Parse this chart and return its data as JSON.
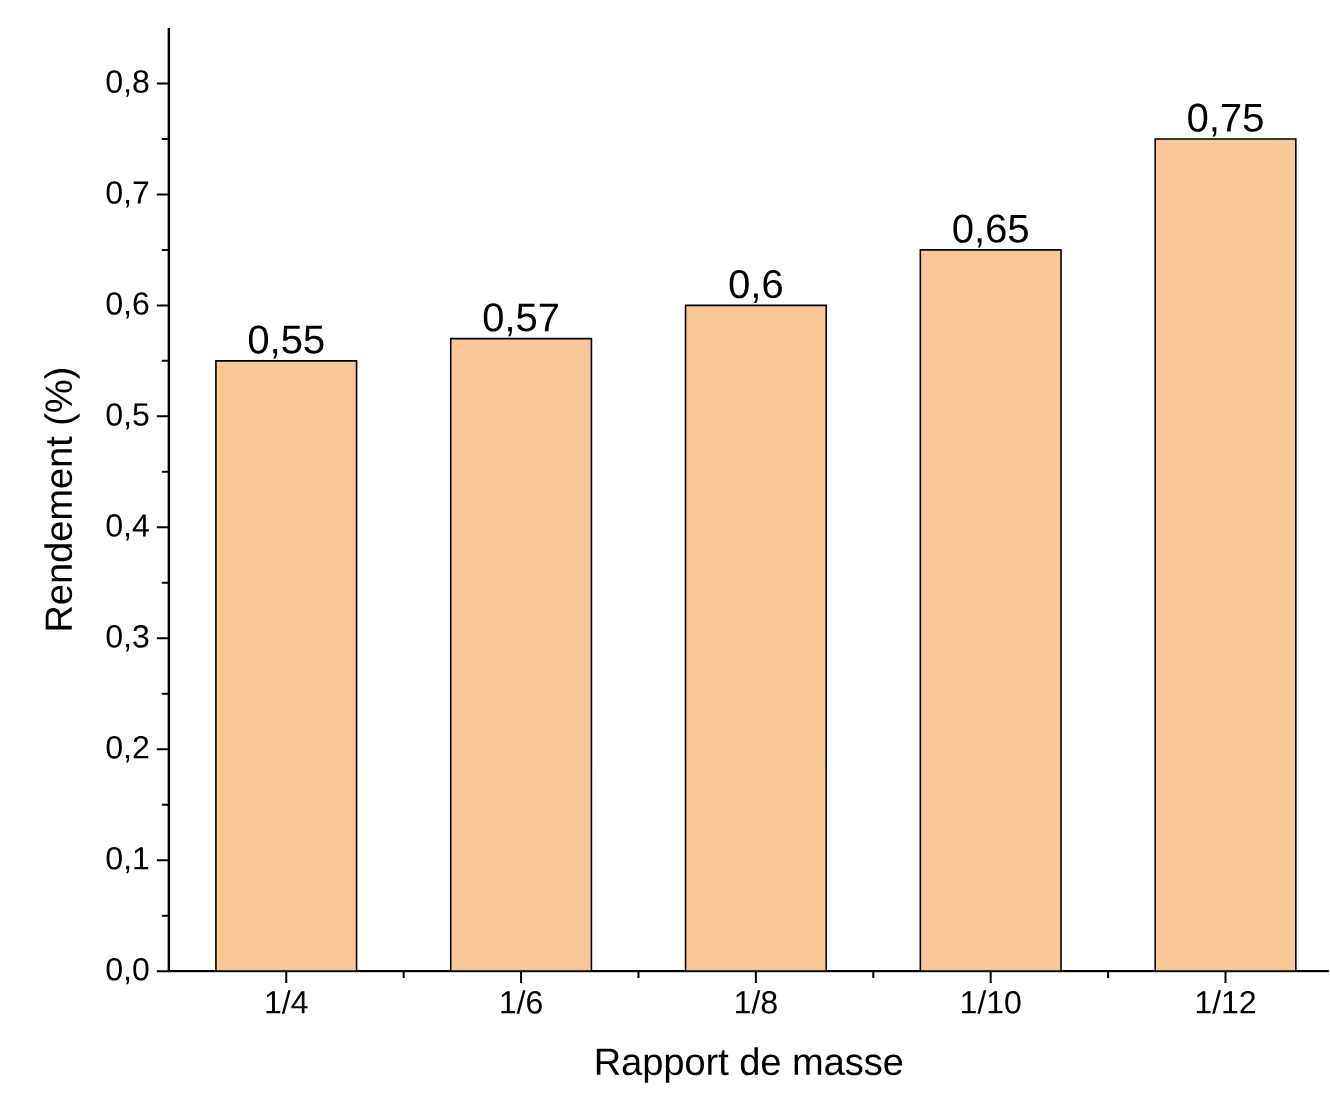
{
  "chart_data": {
    "type": "bar",
    "xlabel": "Rapport de masse",
    "ylabel": "Rendement (%)",
    "categories": [
      "1/4",
      "1/6",
      "1/8",
      "1/10",
      "1/12"
    ],
    "values": [
      0.55,
      0.57,
      0.6,
      0.65,
      0.75
    ],
    "value_labels": [
      "0,55",
      "0,57",
      "0,6",
      "0,65",
      "0,75"
    ],
    "color": "#f9c896",
    "ylim": [
      0,
      0.85
    ],
    "yticks": [
      {
        "value": 0,
        "label": "0,0"
      },
      {
        "value": 0.1,
        "label": "0,1"
      },
      {
        "value": 0.2,
        "label": "0,2"
      },
      {
        "value": 0.3,
        "label": "0,3"
      },
      {
        "value": 0.4,
        "label": "0,4"
      },
      {
        "value": 0.5,
        "label": "0,5"
      },
      {
        "value": 0.6,
        "label": "0,6"
      },
      {
        "value": 0.7,
        "label": "0,7"
      },
      {
        "value": 0.8,
        "label": "0,8"
      }
    ],
    "grid": false
  }
}
